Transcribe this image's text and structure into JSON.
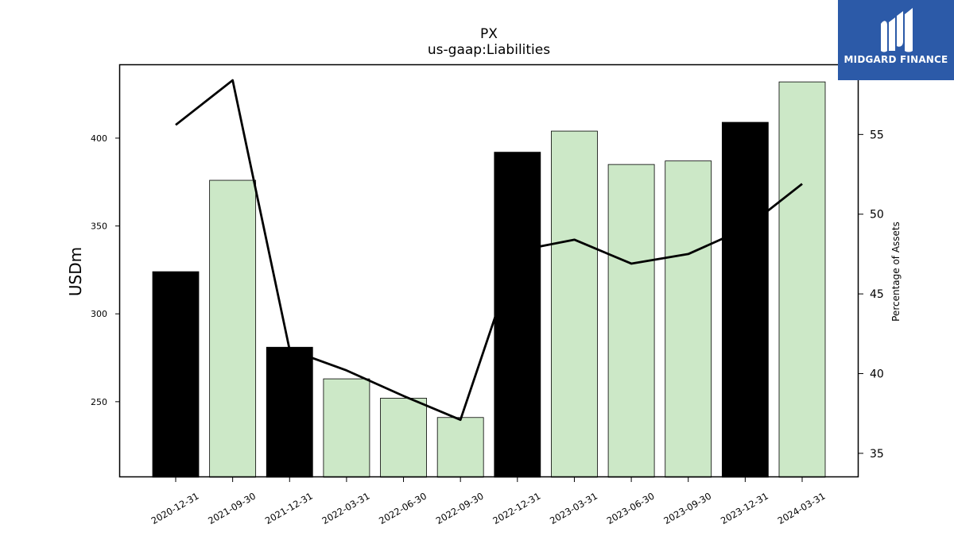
{
  "brand": {
    "name": "MIDGARD FINANCE",
    "bg_color": "#2c5aa8"
  },
  "chart_data": {
    "type": "bar",
    "title": "PX",
    "subtitle": "us-gaap:Liabilities",
    "ylabel": "USDm",
    "y2label": "Percentage of Assets",
    "categories": [
      "2020-12-31",
      "2021-09-30",
      "2021-12-31",
      "2022-03-31",
      "2022-06-30",
      "2022-09-30",
      "2022-12-31",
      "2023-03-31",
      "2023-06-30",
      "2023-09-30",
      "2023-12-31",
      "2024-03-31"
    ],
    "series": [
      {
        "values": [
          324,
          376,
          281,
          263,
          252,
          241,
          392,
          404,
          385,
          387,
          409,
          432
        ],
        "kind": "bar",
        "colors": [
          "#000000",
          "#cce8c7",
          "#000000",
          "#cce8c7",
          "#cce8c7",
          "#cce8c7",
          "#000000",
          "#cce8c7",
          "#cce8c7",
          "#cce8c7",
          "#000000",
          "#cce8c7"
        ]
      },
      {
        "values": [
          55.6,
          58.4,
          41.5,
          40.2,
          38.6,
          37.1,
          47.7,
          48.4,
          46.9,
          47.5,
          49.1,
          51.9
        ],
        "kind": "line",
        "axis": "right",
        "color": "#000000"
      }
    ],
    "ylim": [
      207,
      442
    ],
    "y2lim": [
      33.5,
      59.4
    ],
    "yticks": [
      250,
      300,
      350,
      400
    ],
    "y2ticks": [
      35,
      40,
      45,
      50,
      55
    ],
    "grid": false
  }
}
